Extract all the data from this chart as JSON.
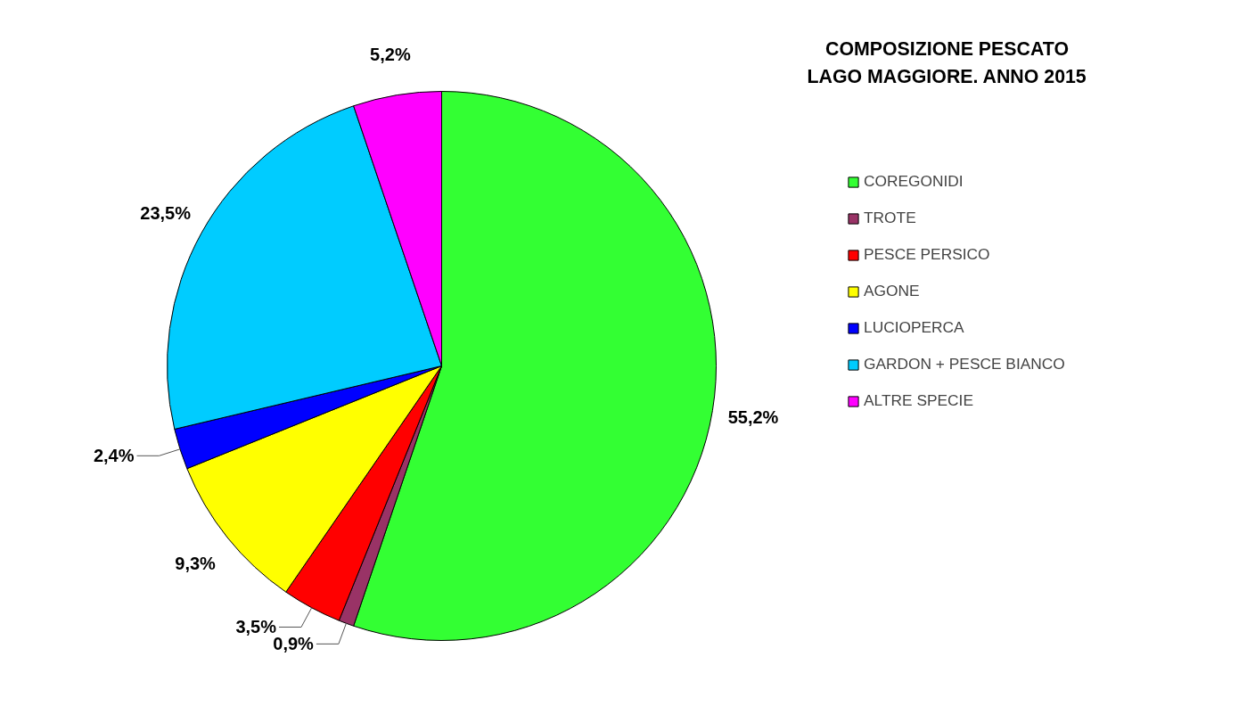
{
  "chart_data": {
    "type": "pie",
    "title": "COMPOSIZIONE PESCATO LAGO MAGGIORE. ANNO 2015",
    "categories": [
      "COREGONIDI",
      "TROTE",
      "PESCE PERSICO",
      "AGONE",
      "LUCIOPERCA",
      "GARDON + PESCE BIANCO",
      "ALTRE SPECIE"
    ],
    "values": [
      55.2,
      0.9,
      3.5,
      9.3,
      2.4,
      23.5,
      5.2
    ],
    "colors": [
      "#33ff33",
      "#993366",
      "#ff0000",
      "#ffff00",
      "#0000ff",
      "#00ccff",
      "#ff00ff"
    ],
    "value_labels": [
      "55,2%",
      "0,9%",
      "3,5%",
      "9,3%",
      "2,4%",
      "23,5%",
      "5,2%"
    ],
    "legend": "right"
  }
}
